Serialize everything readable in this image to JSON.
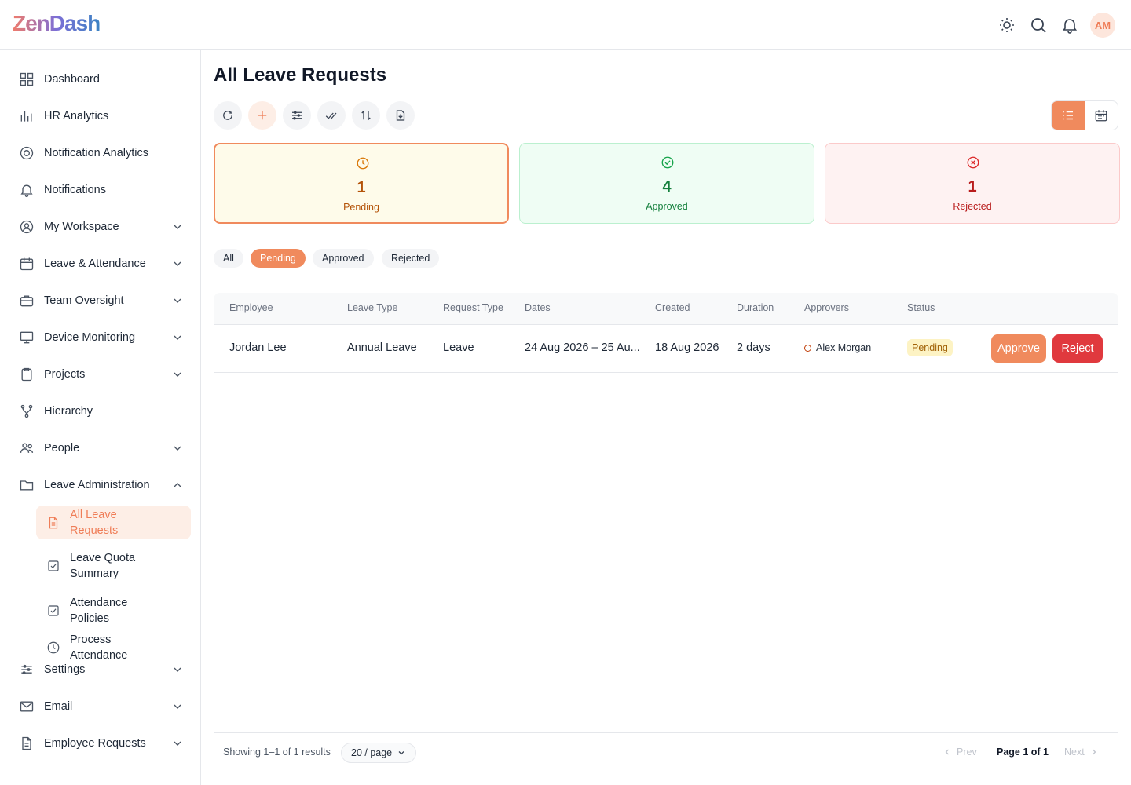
{
  "header": {
    "logo": "ZenDash",
    "avatar": "AM"
  },
  "sidebar": {
    "items": [
      {
        "label": "Dashboard",
        "icon": "grid",
        "expand": ""
      },
      {
        "label": "HR Analytics",
        "icon": "bars",
        "expand": ""
      },
      {
        "label": "Notification Analytics",
        "icon": "target",
        "expand": ""
      },
      {
        "label": "Notifications",
        "icon": "bell",
        "expand": ""
      },
      {
        "label": "My Workspace",
        "icon": "user",
        "expand": "down"
      },
      {
        "label": "Leave & Attendance",
        "icon": "cal",
        "expand": "down"
      },
      {
        "label": "Team Oversight",
        "icon": "brief",
        "expand": "down"
      },
      {
        "label": "Device Monitoring",
        "icon": "monitor",
        "expand": "down"
      },
      {
        "label": "Projects",
        "icon": "clip",
        "expand": "down"
      },
      {
        "label": "Hierarchy",
        "icon": "tree",
        "expand": ""
      },
      {
        "label": "People",
        "icon": "people",
        "expand": "down"
      },
      {
        "label": "Leave Administration",
        "icon": "folder",
        "expand": "up"
      },
      {
        "label": "Settings",
        "icon": "sliders",
        "expand": "down"
      },
      {
        "label": "Email",
        "icon": "mail",
        "expand": "down"
      },
      {
        "label": "Employee Requests",
        "icon": "doc",
        "expand": "down"
      }
    ],
    "subitems": [
      {
        "label": "All Leave Requests",
        "icon": "doc",
        "active": true
      },
      {
        "label": "Leave Quota Summary",
        "icon": "check",
        "active": false
      },
      {
        "label": "Attendance Policies",
        "icon": "check",
        "active": false
      },
      {
        "label": "Process Attendance",
        "icon": "clock",
        "active": false
      }
    ]
  },
  "page": {
    "title": "All Leave Requests"
  },
  "stats": [
    {
      "count": 1,
      "label": "Pending",
      "kind": "pending"
    },
    {
      "count": 4,
      "label": "Approved",
      "kind": "approved"
    },
    {
      "count": 1,
      "label": "Rejected",
      "kind": "rejected"
    }
  ],
  "tabs": {
    "items": [
      "All",
      "Pending",
      "Approved",
      "Rejected"
    ],
    "active": 1
  },
  "table": {
    "headers": [
      "Employee",
      "Leave Type",
      "Request Type",
      "Dates",
      "Created",
      "Duration",
      "Approvers",
      "Status"
    ],
    "rows": [
      [
        "Jordan Lee",
        "Annual Leave",
        "Leave",
        "24 Aug 2026 – 25 Au...",
        "18 Aug 2026",
        "2 days",
        "Alex Morgan",
        "Pending"
      ]
    ],
    "actions": [
      "Approve",
      "Reject"
    ]
  },
  "footer": {
    "summary": "Showing 1–1 of 1 results",
    "page_size": "20 / page",
    "prev": "Prev",
    "page": "Page 1 of 1",
    "next": "Next"
  }
}
